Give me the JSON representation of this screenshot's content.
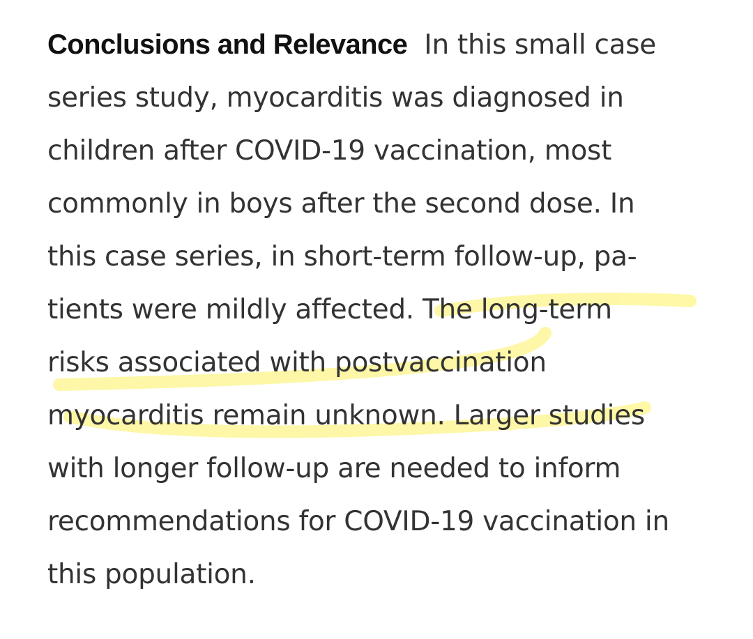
{
  "abstract": {
    "heading": "Conclusions and Relevance",
    "lines": [
      "In this small case",
      "series study, myocarditis was diagnosed in",
      "children after COVID-19 vaccination, most",
      "commonly in boys after the second dose. In",
      "this case series, in short-term follow-up, pa-",
      "tients were mildly affected. The long-term",
      "risks associated with postvaccination",
      "myocarditis remain unknown. Larger studies",
      "with longer follow-up are needed to inform",
      "recommendations for COVID-19 vaccination in",
      "this population."
    ]
  },
  "highlight_color": "#fdf58a"
}
